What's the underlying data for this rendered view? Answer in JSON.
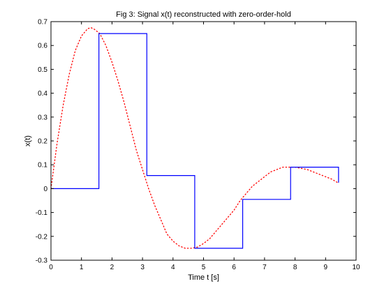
{
  "chart_data": {
    "type": "line",
    "title": "Fig 3: Signal x(t) reconstructed with zero-order-hold",
    "xlabel": "Time t [s]",
    "ylabel": "x(t)",
    "xlim": [
      0,
      10
    ],
    "ylim": [
      -0.3,
      0.7
    ],
    "xticks": [
      0,
      1,
      2,
      3,
      4,
      5,
      6,
      7,
      8,
      9,
      10
    ],
    "yticks": [
      -0.3,
      -0.2,
      -0.1,
      0,
      0.1,
      0.2,
      0.3,
      0.4,
      0.5,
      0.6,
      0.7
    ],
    "grid": false,
    "series": [
      {
        "style": "dotted",
        "color": "#ff0000",
        "x": [
          0,
          0.2,
          0.4,
          0.6,
          0.8,
          1.0,
          1.2,
          1.3,
          1.4,
          1.6,
          1.8,
          2.0,
          2.2,
          2.4,
          2.6,
          2.8,
          3.0,
          3.2,
          3.4,
          3.6,
          3.8,
          4.0,
          4.2,
          4.4,
          4.6,
          4.8,
          5.0,
          5.2,
          5.4,
          5.6,
          5.8,
          6.0,
          6.2,
          6.4,
          6.6,
          6.8,
          7.0,
          7.2,
          7.4,
          7.6,
          7.8,
          8.0,
          8.2,
          8.4,
          8.6,
          8.8,
          9.0,
          9.2,
          9.4
        ],
        "y": [
          0,
          0.19,
          0.35,
          0.48,
          0.58,
          0.64,
          0.67,
          0.675,
          0.67,
          0.65,
          0.6,
          0.53,
          0.45,
          0.36,
          0.26,
          0.16,
          0.08,
          0.0,
          -0.07,
          -0.13,
          -0.19,
          -0.22,
          -0.24,
          -0.25,
          -0.25,
          -0.245,
          -0.23,
          -0.21,
          -0.18,
          -0.15,
          -0.12,
          -0.09,
          -0.05,
          -0.02,
          0.01,
          0.03,
          0.05,
          0.07,
          0.08,
          0.09,
          0.09,
          0.09,
          0.085,
          0.08,
          0.07,
          0.06,
          0.05,
          0.04,
          0.025
        ]
      },
      {
        "style": "step",
        "color": "#0000ff",
        "x": [
          0,
          1.571,
          3.142,
          4.712,
          6.283,
          7.854,
          9.425
        ],
        "y": [
          0,
          0.65,
          0.055,
          -0.25,
          -0.045,
          0.09,
          0.025
        ]
      }
    ]
  }
}
